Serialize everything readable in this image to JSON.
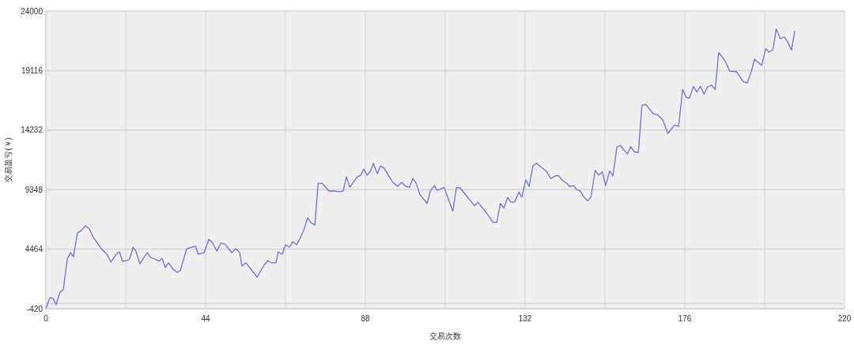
{
  "chart_data": {
    "type": "line",
    "xlabel": "交易次数",
    "ylabel": "交易盈亏(￥)",
    "xlim": [
      0,
      220
    ],
    "xticks": [
      0,
      {
        "value": 22,
        "label": null
      },
      44,
      {
        "value": 66,
        "label": null
      },
      88,
      {
        "value": 110,
        "label": null
      },
      132,
      {
        "value": 154,
        "label": null
      },
      176,
      {
        "value": 198,
        "label": null
      },
      220
    ],
    "ylim": [
      -420,
      24000
    ],
    "yticks": [
      -420,
      {
        "value": 0,
        "label": null
      },
      4464,
      9348,
      14232,
      19116,
      24000
    ],
    "grid": true,
    "marker": "none",
    "line_style": "solid",
    "series": [
      {
        "color": "#7070d8",
        "x": [
          0,
          1.1,
          2,
          2.8,
          3.9,
          4.8,
          5.9,
          6.8,
          7.6,
          8.7,
          9.8,
          10.9,
          12,
          13,
          15.3,
          17,
          17.9,
          19.4,
          20.3,
          21.1,
          22.4,
          23.1,
          24,
          24.8,
          25.9,
          27.9,
          28.8,
          30,
          31.2,
          32,
          32.9,
          33.8,
          35,
          36.2,
          37,
          38.8,
          39.7,
          41.2,
          42,
          43.6,
          44.9,
          45.8,
          47.1,
          48.2,
          49.3,
          51.2,
          52.3,
          53.4,
          54,
          55.1,
          58.2,
          60.1,
          61.2,
          62.1,
          63.4,
          64,
          65.1,
          66,
          67.1,
          68,
          69.1,
          70,
          71,
          72.1,
          73,
          74.1,
          75,
          76.1,
          78,
          79.8,
          80.8,
          81.9,
          82.8,
          83.7,
          85,
          85.8,
          86.7,
          87.6,
          88.5,
          89.5,
          90.2,
          91.3,
          92.2,
          93.2,
          94.1,
          95.6,
          96.9,
          98,
          99.1,
          100.2,
          101.1,
          102,
          103,
          104.4,
          105,
          105.9,
          107,
          107.8,
          109.7,
          112.1,
          113.1,
          114.1,
          118.1,
          119,
          121,
          123.2,
          124.2,
          125.2,
          126.2,
          127.2,
          128.1,
          129.1,
          130.3,
          131.1,
          132.2,
          133.1,
          134.2,
          135.2,
          136.2,
          137.7,
          139.1,
          140.5,
          141.3,
          142.4,
          143.5,
          144.2,
          145.3,
          146.2,
          147.1,
          148.4,
          149.3,
          150.2,
          151.3,
          152.3,
          153.3,
          154.2,
          155.3,
          156.2,
          157.3,
          158.2,
          160.2,
          161.1,
          162.2,
          163.2,
          164.2,
          165.3,
          167.3,
          168.6,
          170,
          171.3,
          173.2,
          174.3,
          175.4,
          176.4,
          177.3,
          178.4,
          179.3,
          180.3,
          181.3,
          182.3,
          183.3,
          184.4,
          185.3,
          186.3,
          187.4,
          188.4,
          190.2,
          192.1,
          193.2,
          194.3,
          195.2,
          197.2,
          198.3,
          199.2,
          200.3,
          201.2,
          202.3,
          203.4,
          204.3,
          205.4,
          206.3
        ],
        "values": [
          -420,
          490,
          420,
          -100,
          940,
          1130,
          3660,
          4180,
          3850,
          5800,
          6000,
          6380,
          6120,
          5470,
          4500,
          3980,
          3400,
          4050,
          4240,
          3470,
          3530,
          3660,
          4630,
          4310,
          3270,
          4180,
          3790,
          3660,
          3470,
          3720,
          2950,
          3340,
          2820,
          2560,
          2690,
          4500,
          4570,
          4700,
          4050,
          4180,
          5280,
          5020,
          4310,
          4960,
          4890,
          4180,
          4500,
          4180,
          3080,
          3340,
          2170,
          3140,
          3530,
          3340,
          3340,
          4240,
          4050,
          4830,
          4630,
          5080,
          4830,
          5340,
          5990,
          7030,
          6640,
          6440,
          9870,
          9870,
          9230,
          9230,
          9170,
          9230,
          10400,
          9550,
          10070,
          10400,
          10520,
          11040,
          10520,
          10910,
          11500,
          10650,
          11300,
          11100,
          10650,
          9940,
          9620,
          9940,
          9620,
          9550,
          10260,
          9870,
          8970,
          8450,
          8190,
          9230,
          9680,
          9290,
          9530,
          7570,
          9530,
          9490,
          8020,
          8320,
          7590,
          6660,
          6660,
          8210,
          7850,
          8710,
          8320,
          8320,
          9140,
          8710,
          10160,
          9620,
          11300,
          11520,
          11240,
          10910,
          10260,
          10500,
          10480,
          10070,
          9860,
          9620,
          9680,
          9360,
          9250,
          8670,
          8430,
          8760,
          10930,
          10550,
          10800,
          9680,
          10870,
          10480,
          12860,
          12970,
          12270,
          12860,
          12450,
          12380,
          16270,
          16330,
          15580,
          15470,
          15040,
          13960,
          14650,
          14540,
          17570,
          16920,
          16850,
          17820,
          17350,
          17820,
          17180,
          17780,
          17930,
          17570,
          20580,
          20260,
          19720,
          19070,
          19030,
          18210,
          18100,
          19010,
          20050,
          19550,
          20910,
          20630,
          20840,
          22530,
          21730,
          21880,
          21490,
          20800,
          22380
        ]
      }
    ]
  }
}
